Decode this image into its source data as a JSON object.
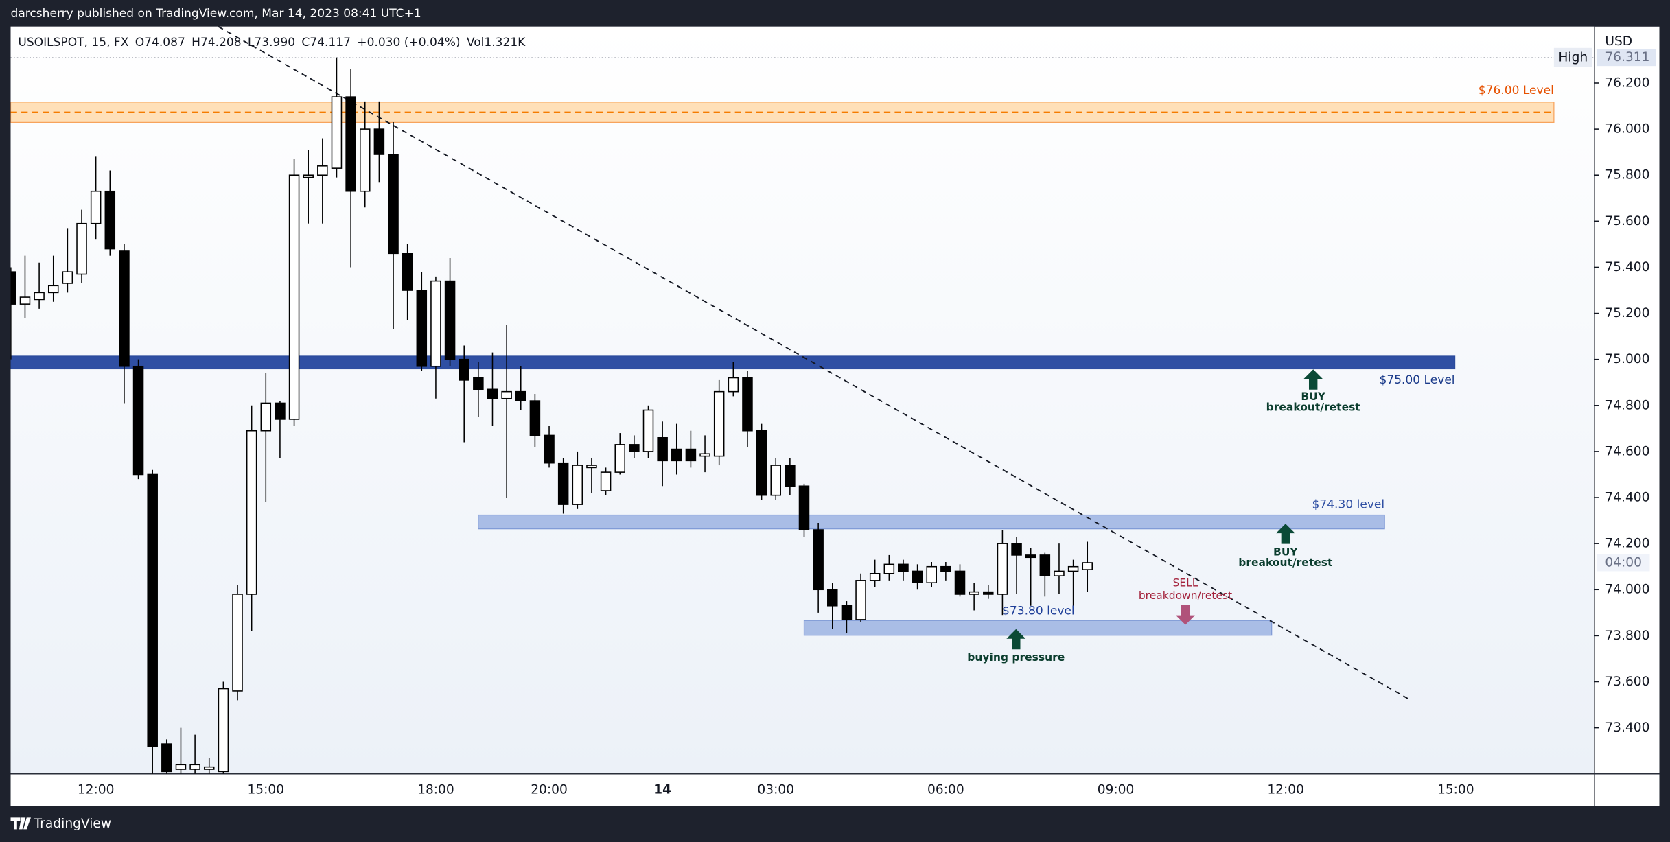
{
  "header": {
    "published": "darcsherry published on TradingView.com, Mar 14, 2023 08:41 UTC+1",
    "symbol": "USOILSPOT, 15, FX",
    "ohlc": [
      "O74.087",
      "H74.208",
      "L73.990",
      "C74.117",
      "+0.030 (+0.04%)"
    ],
    "volume": "Vol1.321K",
    "currency": "USD",
    "brand": "TradingView"
  },
  "chart_data": {
    "type": "candlestick",
    "categories": [
      null,
      null,
      null,
      null,
      null,
      null,
      "12:00",
      null,
      null,
      null,
      null,
      null,
      null,
      null,
      null,
      null,
      null,
      null,
      "15:00",
      null,
      null,
      null,
      null,
      null,
      null,
      null,
      null,
      null,
      null,
      null,
      "18:00",
      null,
      null,
      null,
      null,
      null,
      null,
      null,
      "20:00",
      null,
      null,
      null,
      null,
      null,
      null,
      null,
      "14",
      null,
      null,
      null,
      null,
      null,
      null,
      null,
      "03:00",
      null,
      null,
      null,
      null,
      null,
      null,
      null,
      null,
      null,
      null,
      null,
      "06:00",
      null,
      null,
      null,
      null,
      null,
      null,
      null,
      null,
      null,
      null,
      null,
      "09:00",
      null,
      null,
      null,
      null,
      null,
      null,
      null,
      null,
      null,
      null,
      null,
      "12:00",
      null,
      null,
      null,
      null,
      null,
      null,
      null,
      null,
      null,
      null,
      null,
      "15:00"
    ],
    "open": [
      75.38,
      75.24,
      75.26,
      75.29,
      75.33,
      75.37,
      75.59,
      75.73,
      75.47,
      74.97,
      74.5,
      73.33,
      73.22,
      73.22,
      73.22,
      73.21,
      73.56,
      73.98,
      74.69,
      74.81,
      74.74,
      75.79,
      75.8,
      75.83,
      76.14,
      75.73,
      76.0,
      75.89,
      75.46,
      75.3,
      74.97,
      75.34,
      75.0,
      74.92,
      74.87,
      74.83,
      74.86,
      74.82,
      74.67,
      74.55,
      74.37,
      74.53,
      74.43,
      74.51,
      74.63,
      74.6,
      74.66,
      74.61,
      74.61,
      74.58,
      74.58,
      74.86,
      74.92,
      74.69,
      74.41,
      74.54,
      74.45,
      74.26,
      74.0,
      73.93,
      73.87,
      74.04,
      74.07,
      74.11,
      74.08,
      74.03,
      74.1,
      74.08,
      73.98,
      73.99,
      73.98,
      74.2,
      74.15,
      74.15,
      74.06,
      74.08,
      74.087,
      null,
      null,
      null,
      null,
      null,
      null,
      null,
      null,
      null,
      null,
      null,
      null,
      null,
      null,
      null,
      null,
      null,
      null,
      null,
      null,
      null,
      null,
      null,
      null,
      null,
      null
    ],
    "high": [
      75.4,
      75.45,
      75.42,
      75.45,
      75.57,
      75.65,
      75.88,
      75.82,
      75.5,
      75.0,
      74.52,
      73.35,
      73.4,
      73.37,
      73.27,
      73.6,
      74.02,
      74.8,
      74.94,
      74.82,
      75.87,
      75.91,
      75.96,
      76.311,
      76.26,
      76.12,
      76.12,
      76.03,
      75.5,
      75.38,
      75.36,
      75.44,
      75.06,
      74.99,
      75.03,
      75.15,
      74.97,
      74.85,
      74.71,
      74.57,
      74.6,
      74.57,
      74.53,
      74.68,
      74.67,
      74.8,
      74.73,
      74.72,
      74.69,
      74.67,
      74.91,
      74.99,
      74.95,
      74.72,
      74.57,
      74.57,
      74.46,
      74.29,
      74.03,
      73.95,
      74.07,
      74.13,
      74.15,
      74.13,
      74.11,
      74.12,
      74.12,
      74.11,
      74.03,
      74.02,
      74.26,
      74.23,
      74.18,
      74.16,
      74.2,
      74.13,
      74.208,
      null,
      null,
      null,
      null,
      null,
      null,
      null,
      null,
      null,
      null,
      null,
      null,
      null,
      null,
      null,
      null,
      null,
      null,
      null,
      null,
      null,
      null,
      null,
      null,
      null,
      null
    ],
    "low": [
      75.0,
      75.18,
      75.22,
      75.25,
      75.29,
      75.33,
      75.52,
      75.45,
      74.81,
      74.48,
      73.2,
      73.2,
      73.2,
      73.2,
      73.2,
      73.2,
      73.52,
      73.82,
      74.38,
      74.57,
      74.71,
      75.59,
      75.59,
      75.79,
      75.4,
      75.66,
      75.77,
      75.13,
      75.17,
      74.95,
      74.83,
      74.97,
      74.64,
      74.75,
      74.71,
      74.4,
      74.78,
      74.62,
      74.53,
      74.33,
      74.35,
      74.42,
      74.41,
      74.5,
      74.57,
      74.57,
      74.45,
      74.5,
      74.53,
      74.51,
      74.54,
      74.84,
      74.62,
      74.39,
      74.39,
      74.41,
      74.23,
      73.9,
      73.83,
      73.81,
      73.86,
      74.01,
      74.04,
      74.04,
      74.0,
      74.01,
      74.04,
      73.97,
      73.91,
      73.96,
      73.89,
      73.98,
      73.93,
      73.97,
      73.98,
      73.92,
      73.99,
      null,
      null,
      null,
      null,
      null,
      null,
      null,
      null,
      null,
      null,
      null,
      null,
      null,
      null,
      null,
      null,
      null,
      null,
      null,
      null,
      null,
      null,
      null,
      null,
      null,
      null
    ],
    "close": [
      75.24,
      75.27,
      75.29,
      75.32,
      75.38,
      75.59,
      75.73,
      75.48,
      74.97,
      74.5,
      73.32,
      73.21,
      73.24,
      73.24,
      73.23,
      73.57,
      73.98,
      74.69,
      74.81,
      74.74,
      75.8,
      75.8,
      75.84,
      76.14,
      75.73,
      76.0,
      75.89,
      75.46,
      75.3,
      74.97,
      75.34,
      75.0,
      74.91,
      74.87,
      74.83,
      74.86,
      74.82,
      74.67,
      74.55,
      74.37,
      74.54,
      74.54,
      74.51,
      74.63,
      74.6,
      74.78,
      74.56,
      74.56,
      74.56,
      74.59,
      74.86,
      74.92,
      74.69,
      74.41,
      74.54,
      74.45,
      74.26,
      74.0,
      73.93,
      73.87,
      74.04,
      74.07,
      74.11,
      74.08,
      74.03,
      74.1,
      74.08,
      73.98,
      73.99,
      73.98,
      74.2,
      74.15,
      74.14,
      74.06,
      74.08,
      74.1,
      74.117,
      null,
      null,
      null,
      null,
      null,
      null,
      null,
      null,
      null,
      null,
      null,
      null,
      null,
      null,
      null,
      null,
      null,
      null,
      null,
      null,
      null,
      null,
      null,
      null,
      null,
      null
    ],
    "up_color": "#ffffff",
    "down_color": "#000000",
    "ylim": [
      73.2,
      76.445
    ],
    "yticks": [
      {
        "value": 73.4,
        "label": "73.400"
      },
      {
        "value": 73.6,
        "label": "73.600"
      },
      {
        "value": 73.8,
        "label": "73.800"
      },
      {
        "value": 74.0,
        "label": "74.000"
      },
      {
        "value": 74.2,
        "label": "74.200"
      },
      {
        "value": 74.4,
        "label": "74.400"
      },
      {
        "value": 74.6,
        "label": "74.600"
      },
      {
        "value": 74.8,
        "label": "74.800"
      },
      {
        "value": 75.0,
        "label": "75.000"
      },
      {
        "value": 75.2,
        "label": "75.200"
      },
      {
        "value": 75.4,
        "label": "75.400"
      },
      {
        "value": 75.6,
        "label": "75.600"
      },
      {
        "value": 75.8,
        "label": "75.800"
      },
      {
        "value": 76.0,
        "label": "76.000"
      },
      {
        "value": 76.2,
        "label": "76.200"
      }
    ],
    "high_marker": {
      "label": "High",
      "value": 76.311
    },
    "countdown": "04:00",
    "levels": [
      {
        "label": "$76.00 Level",
        "high": 76.117,
        "low": 76.029,
        "color": "#ffe0b8"
      },
      {
        "label": "$75.00 Level",
        "high": 75.014,
        "low": 74.959,
        "color": "#2f4fa3"
      },
      {
        "label": "$74.30 level",
        "high": 74.324,
        "low": 74.264,
        "color": "#a9bde6"
      },
      {
        "label": "$73.80 level",
        "high": 73.866,
        "low": 73.802,
        "color": "#a9bde6"
      }
    ],
    "annotations": [
      {
        "title": "BUY",
        "text": "breakout/retest"
      },
      {
        "title": "BUY",
        "text": "breakout/retest"
      },
      {
        "title": "SELL",
        "text": "breakdown/retest"
      },
      {
        "text": "buying pressure"
      }
    ]
  }
}
